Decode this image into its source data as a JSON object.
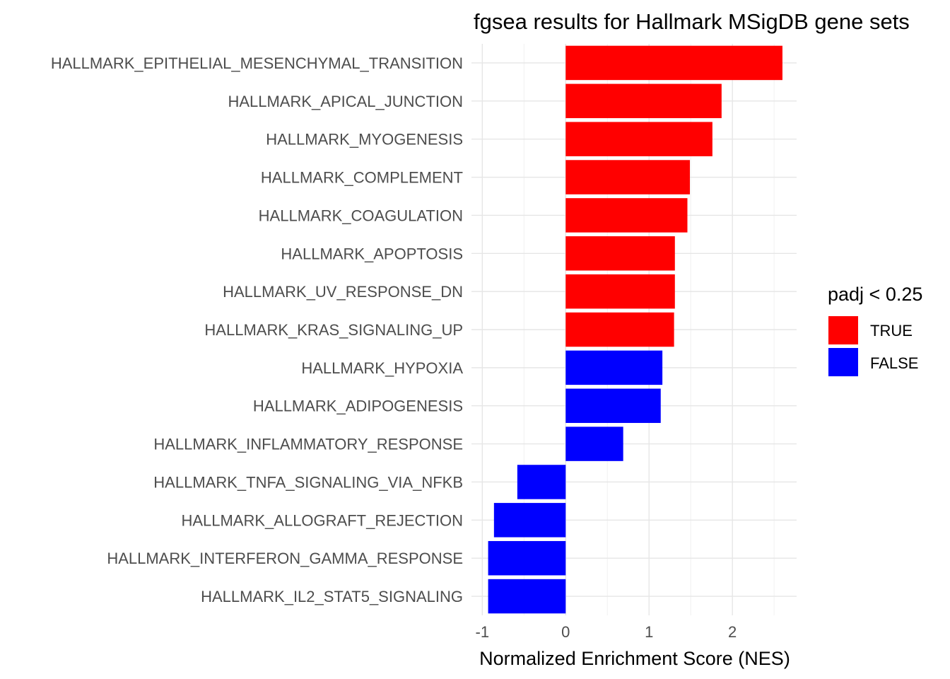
{
  "chart_data": {
    "type": "bar",
    "orientation": "horizontal",
    "title": "fgsea results for Hallmark MSigDB gene sets",
    "xlabel": "Normalized Enrichment Score (NES)",
    "ylabel": "",
    "xlim": [
      -1,
      2.7
    ],
    "xticks": [
      "-1",
      "0",
      "1",
      "2"
    ],
    "grid": true,
    "legend": {
      "title": "padj < 0.25",
      "position": "right",
      "entries": [
        {
          "label": "TRUE",
          "color": "#ff0000"
        },
        {
          "label": "FALSE",
          "color": "#0000ff"
        }
      ]
    },
    "categories": [
      "HALLMARK_EPITHELIAL_MESENCHYMAL_TRANSITION",
      "HALLMARK_APICAL_JUNCTION",
      "HALLMARK_MYOGENESIS",
      "HALLMARK_COMPLEMENT",
      "HALLMARK_COAGULATION",
      "HALLMARK_APOPTOSIS",
      "HALLMARK_UV_RESPONSE_DN",
      "HALLMARK_KRAS_SIGNALING_UP",
      "HALLMARK_HYPOXIA",
      "HALLMARK_ADIPOGENESIS",
      "HALLMARK_INFLAMMATORY_RESPONSE",
      "HALLMARK_TNFA_SIGNALING_VIA_NFKB",
      "HALLMARK_ALLOGRAFT_REJECTION",
      "HALLMARK_INTERFERON_GAMMA_RESPONSE",
      "HALLMARK_IL2_STAT5_SIGNALING"
    ],
    "values": [
      2.6,
      1.87,
      1.76,
      1.49,
      1.46,
      1.31,
      1.31,
      1.3,
      1.16,
      1.14,
      0.69,
      -0.58,
      -0.86,
      -0.93,
      -0.93
    ],
    "padj_lt_025": [
      true,
      true,
      true,
      true,
      true,
      true,
      true,
      true,
      false,
      false,
      false,
      false,
      false,
      false,
      false
    ]
  }
}
